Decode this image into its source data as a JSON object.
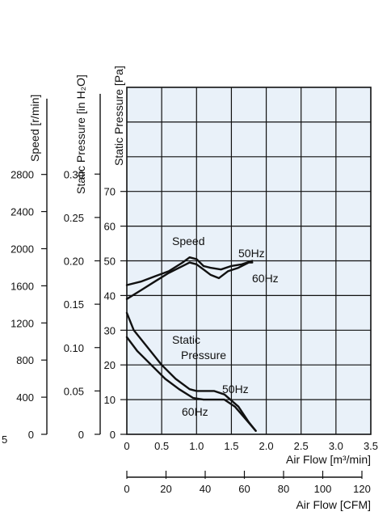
{
  "chart_data": {
    "type": "line",
    "plot_background": "#e9f1f9",
    "grid": true,
    "x_axis_primary": {
      "label": "Air Flow [m³/min]",
      "range": [
        0,
        3.5
      ],
      "ticks": [
        "0.5",
        "1.0",
        "1.5",
        "2.0",
        "2.5",
        "3.0",
        "3.5"
      ],
      "tick_values": [
        0.5,
        1.0,
        1.5,
        2.0,
        2.5,
        3.0,
        3.5
      ]
    },
    "x_axis_secondary": {
      "label": "Air Flow [CFM]",
      "ticks": [
        "0",
        "20",
        "40",
        "60",
        "80",
        "100",
        "120"
      ],
      "tick_values": [
        0,
        20,
        40,
        60,
        80,
        100,
        120
      ]
    },
    "y_axis_pa": {
      "label": "Static Pressure [Pa]",
      "range": [
        0,
        100
      ],
      "ticks": [
        "0",
        "10",
        "20",
        "30",
        "40",
        "50",
        "60",
        "70"
      ],
      "tick_values": [
        0,
        10,
        20,
        30,
        40,
        50,
        60,
        70
      ]
    },
    "y_axis_inh2o": {
      "label": "Static Pressure [in H₂O]",
      "ticks": [
        "0",
        "0.05",
        "0.10",
        "0.15",
        "0.20",
        "0.25",
        "0.30"
      ],
      "tick_values": [
        0,
        0.05,
        0.1,
        0.15,
        0.2,
        0.25,
        0.3
      ]
    },
    "y_axis_speed": {
      "label": "Speed [r/min]",
      "ticks": [
        "0",
        "400",
        "800",
        "1200",
        "1600",
        "2000",
        "2400",
        "2800"
      ],
      "tick_values": [
        0,
        400,
        800,
        1200,
        1600,
        2000,
        2400,
        2800
      ]
    },
    "series": [
      {
        "name": "50Hz",
        "group": "Speed",
        "x": [
          0,
          0.2,
          0.4,
          0.6,
          0.8,
          0.9,
          1.0,
          1.1,
          1.2,
          1.35,
          1.5,
          1.65,
          1.8
        ],
        "y": [
          43,
          44,
          45.5,
          47,
          49.5,
          51,
          50.5,
          48.5,
          48,
          47.5,
          48.5,
          49,
          50
        ]
      },
      {
        "name": "60Hz",
        "group": "Speed",
        "x": [
          0,
          0.2,
          0.4,
          0.6,
          0.8,
          0.9,
          1.0,
          1.1,
          1.2,
          1.32,
          1.45,
          1.6,
          1.75,
          1.8
        ],
        "y": [
          39,
          41.5,
          44,
          46.5,
          48.5,
          49.5,
          49,
          47.5,
          46,
          45,
          47,
          48,
          49.5,
          49.5
        ]
      },
      {
        "name": "50Hz",
        "group": "Static Pressure",
        "x": [
          0,
          0.1,
          0.3,
          0.5,
          0.7,
          0.9,
          1.0,
          1.1,
          1.25,
          1.4,
          1.6,
          1.75,
          1.85
        ],
        "y": [
          35,
          30,
          25,
          20,
          16,
          13,
          12.5,
          12.5,
          12.5,
          11.5,
          8,
          3.5,
          1
        ]
      },
      {
        "name": "60Hz",
        "group": "Static Pressure",
        "x": [
          0,
          0.15,
          0.35,
          0.55,
          0.75,
          0.95,
          1.1,
          1.25,
          1.4,
          1.55,
          1.7,
          1.85
        ],
        "y": [
          28,
          24,
          20,
          16,
          13,
          10.5,
          10,
          10,
          10,
          8,
          4.5,
          1
        ]
      }
    ],
    "annotations": {
      "speed": "Speed",
      "static_line1": "Static",
      "static_line2": "Pressure",
      "speed_50": "50Hz",
      "speed_60": "60Hz",
      "sp_50": "50Hz",
      "sp_60": "60Hz"
    },
    "stray_left_char": "5"
  }
}
